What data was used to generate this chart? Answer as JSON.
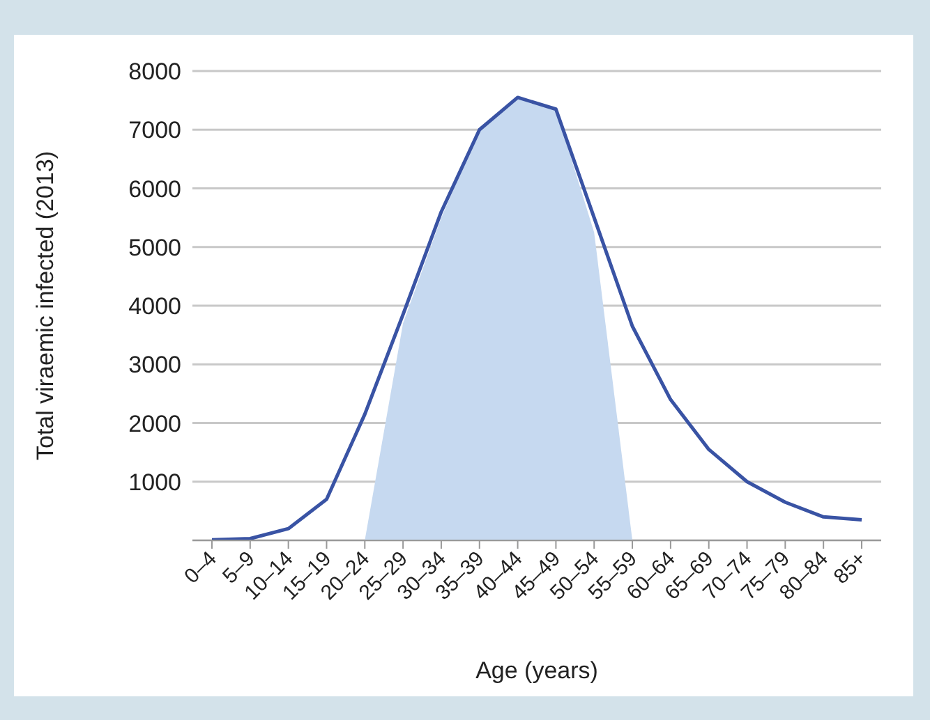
{
  "chart_data": {
    "type": "line",
    "xlabel": "Age (years)",
    "ylabel": "Total viraemic infected (2013)",
    "categories": [
      "0–4",
      "5–9",
      "10–14",
      "15–19",
      "20–24",
      "25–29",
      "30–34",
      "35–39",
      "40–44",
      "45–49",
      "50–54",
      "55–59",
      "60–64",
      "65–69",
      "70–74",
      "75–79",
      "80–84",
      "85+"
    ],
    "series": [
      {
        "type": "area",
        "color": "#c6d9f0",
        "values": [
          null,
          null,
          null,
          null,
          0,
          3700,
          5500,
          7000,
          7550,
          7350,
          5250,
          0,
          null,
          null,
          null,
          null,
          null,
          null
        ]
      },
      {
        "color": "#3953a4",
        "values": [
          10,
          30,
          200,
          700,
          2150,
          3850,
          5600,
          7000,
          7550,
          7350,
          5500,
          3650,
          2400,
          1550,
          1000,
          650,
          400,
          350
        ]
      }
    ],
    "ylim": [
      0,
      8000
    ],
    "yticks": [
      1000,
      2000,
      3000,
      4000,
      5000,
      6000,
      7000,
      8000
    ],
    "grid": "y",
    "marker": "none",
    "line_style": "solid"
  }
}
